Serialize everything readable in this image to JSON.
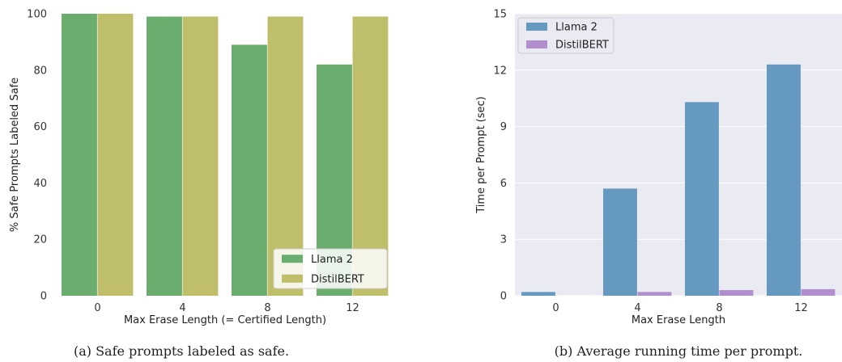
{
  "chart_data": [
    {
      "type": "bar",
      "caption": "(a) Safe prompts labeled as safe.",
      "categories": [
        "0",
        "4",
        "8",
        "12"
      ],
      "series": [
        {
          "name": "Llama 2",
          "values": [
            100,
            99,
            89,
            82
          ],
          "color": "#6aad6e"
        },
        {
          "name": "DistilBERT",
          "values": [
            100,
            99,
            99,
            99
          ],
          "color": "#bfbe6b"
        }
      ],
      "xlabel": "Max Erase Length (= Certified Length)",
      "ylabel": "% Safe Prompts Labeled Safe",
      "ylim": [
        0,
        100
      ],
      "yticks": [
        "0",
        "20",
        "40",
        "60",
        "80",
        "100"
      ],
      "grid": false,
      "legend_position": "bottom-right",
      "background": "#ffffff"
    },
    {
      "type": "bar",
      "caption": "(b) Average running time per prompt.",
      "categories": [
        "0",
        "4",
        "8",
        "12"
      ],
      "series": [
        {
          "name": "Llama 2",
          "values": [
            0.2,
            5.7,
            10.3,
            12.3
          ],
          "color": "#6699c0"
        },
        {
          "name": "DistilBERT",
          "values": [
            0.0,
            0.2,
            0.3,
            0.35
          ],
          "color": "#b08fcc"
        }
      ],
      "xlabel": "Max Erase Length",
      "ylabel": "Time per Prompt (sec)",
      "ylim": [
        0,
        15
      ],
      "yticks": [
        "0",
        "3",
        "6",
        "9",
        "12",
        "15"
      ],
      "grid": true,
      "legend_position": "top-left",
      "background": "#eaeaf2"
    }
  ]
}
